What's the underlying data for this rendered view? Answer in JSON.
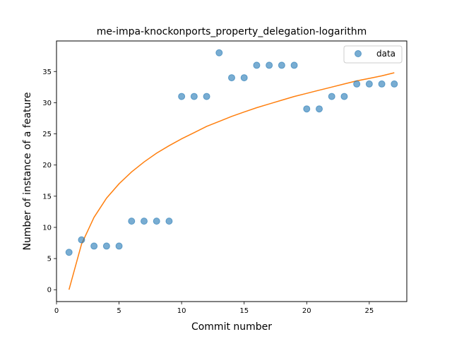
{
  "chart_data": {
    "type": "scatter",
    "title": "me-impa-knockonports_property_delegation-logarithm",
    "xlabel": "Commit number",
    "ylabel": "Number of instance of a feature",
    "xlim": [
      0,
      28
    ],
    "ylim": [
      -1.9,
      39.9
    ],
    "xticks": [
      0,
      5,
      10,
      15,
      20,
      25
    ],
    "yticks": [
      0,
      5,
      10,
      15,
      20,
      25,
      30,
      35
    ],
    "grid": false,
    "legend_position": "top-right",
    "series": [
      {
        "name": "data",
        "kind": "scatter",
        "color": "#1f77b4",
        "x": [
          1,
          2,
          3,
          4,
          5,
          6,
          7,
          8,
          9,
          10,
          11,
          12,
          13,
          14,
          15,
          16,
          17,
          18,
          19,
          20,
          21,
          22,
          23,
          24,
          25,
          26,
          27
        ],
        "y": [
          6,
          8,
          7,
          7,
          7,
          11,
          11,
          11,
          11,
          31,
          31,
          31,
          38,
          34,
          34,
          36,
          36,
          36,
          36,
          29,
          29,
          31,
          31,
          33,
          33,
          33,
          33
        ]
      },
      {
        "kind": "line",
        "color": "#ff7f0e",
        "x": [
          1,
          2,
          3,
          4,
          5,
          6,
          7,
          8,
          9,
          10,
          11,
          12,
          13,
          14,
          15,
          16,
          17,
          18,
          19,
          20,
          21,
          22,
          23,
          24,
          25,
          26,
          27
        ],
        "y": [
          0.0,
          7.3,
          11.6,
          14.7,
          17.0,
          18.9,
          20.5,
          21.9,
          23.1,
          24.2,
          25.2,
          26.2,
          27.0,
          27.8,
          28.5,
          29.2,
          29.8,
          30.4,
          31.0,
          31.5,
          32.0,
          32.5,
          33.0,
          33.5,
          33.9,
          34.3,
          34.8
        ]
      }
    ]
  }
}
